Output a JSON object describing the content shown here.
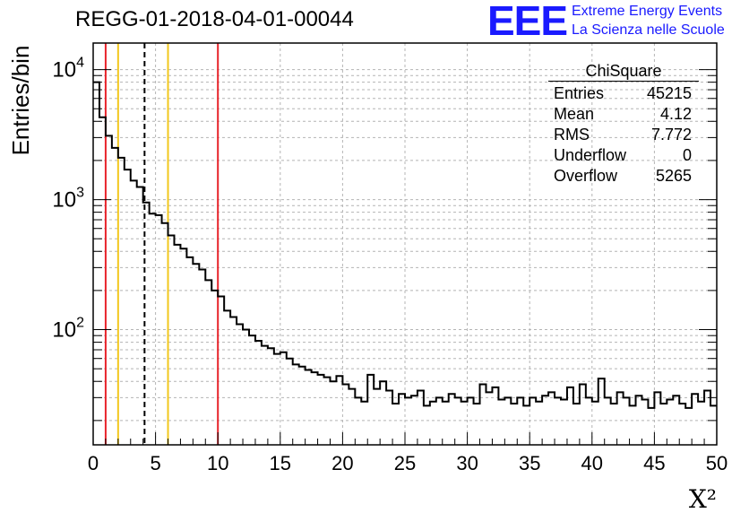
{
  "header": {
    "title": "REGG-01-2018-04-01-00044"
  },
  "logo": {
    "mark": "EEE",
    "line1": "Extreme Energy Events",
    "line2": "La Scienza nelle Scuole"
  },
  "stats_box": {
    "name": "ChiSquare",
    "rows": [
      {
        "label": "Entries",
        "value": "45215"
      },
      {
        "label": "Mean",
        "value": "4.12"
      },
      {
        "label": "RMS",
        "value": "7.772"
      },
      {
        "label": "Underflow",
        "value": "0"
      },
      {
        "label": "Overflow",
        "value": "5265"
      }
    ]
  },
  "colors": {
    "red_line": "#e8242b",
    "yellow_line": "#f2c81e",
    "histogram": "#000000",
    "grid": "#b4b4b4"
  },
  "chart_data": {
    "type": "bar",
    "style": "step-histogram",
    "xlabel": "X²",
    "ylabel": "Entries/bin",
    "xlim": [
      0,
      50
    ],
    "ylim": [
      13,
      16000
    ],
    "y_scale": "log",
    "grid": true,
    "bin_width": 0.5,
    "x_ticks": [
      "0",
      "5",
      "10",
      "15",
      "20",
      "25",
      "30",
      "35",
      "40",
      "45",
      "50"
    ],
    "y_ticks": [
      {
        "base": "10",
        "exp": "2",
        "value": 100
      },
      {
        "base": "10",
        "exp": "3",
        "value": 1000
      },
      {
        "base": "10",
        "exp": "4",
        "value": 10000
      }
    ],
    "vertical_lines": [
      {
        "x": 1,
        "color": "red",
        "style": "solid"
      },
      {
        "x": 2,
        "color": "yellow",
        "style": "solid"
      },
      {
        "x": 4.12,
        "color": "black",
        "style": "dashed"
      },
      {
        "x": 6,
        "color": "yellow",
        "style": "solid"
      },
      {
        "x": 10,
        "color": "red",
        "style": "solid"
      }
    ],
    "values": [
      8000,
      4300,
      3100,
      2500,
      2100,
      1700,
      1400,
      1250,
      950,
      780,
      760,
      660,
      530,
      450,
      420,
      360,
      320,
      290,
      240,
      200,
      180,
      140,
      125,
      110,
      100,
      90,
      82,
      75,
      72,
      65,
      67,
      60,
      54,
      52,
      49,
      47,
      45,
      43,
      40,
      44,
      38,
      35,
      30,
      28,
      45,
      35,
      40,
      34,
      27,
      32,
      30,
      31,
      34,
      26,
      28,
      30,
      28,
      32,
      30,
      28,
      30,
      27,
      38,
      33,
      36,
      29,
      30,
      27,
      30,
      26,
      30,
      28,
      31,
      33,
      30,
      29,
      36,
      27,
      38,
      30,
      28,
      42,
      30,
      27,
      33,
      30,
      26,
      31,
      29,
      25,
      33,
      27,
      29,
      31,
      27,
      25,
      32,
      28,
      34,
      26
    ]
  }
}
